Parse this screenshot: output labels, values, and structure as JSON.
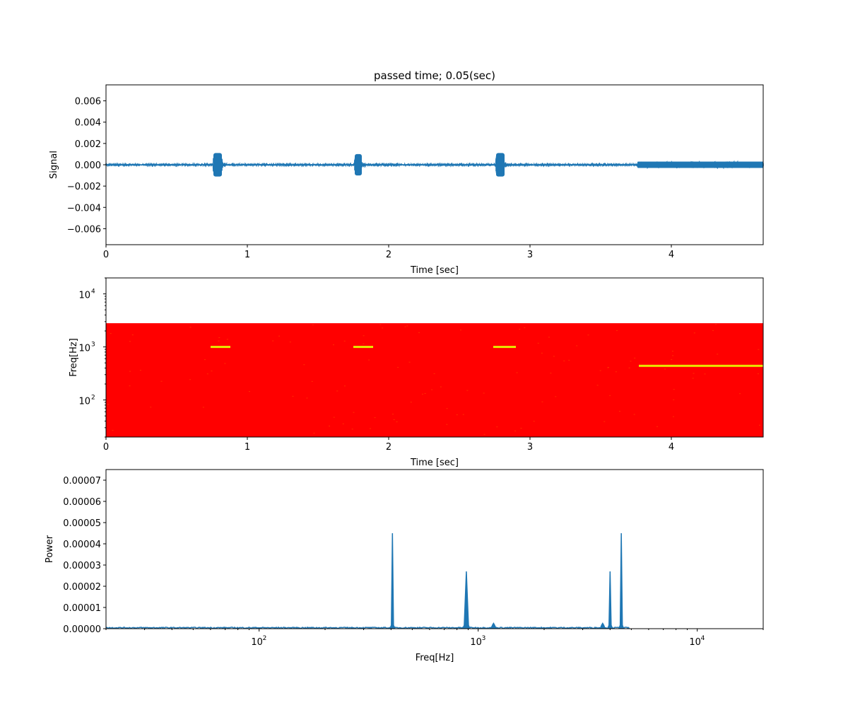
{
  "title": "passed time; 0.05(sec)",
  "colors": {
    "line": "#1f77b4",
    "spectrogram_background": "#ff0000",
    "spectrogram_highlight": "#e8e800"
  },
  "chart_data": [
    {
      "type": "line",
      "ylabel": "Signal",
      "xlabel": "Time [sec]",
      "xlim": [
        0,
        4.65
      ],
      "ylim": [
        -0.0075,
        0.0075
      ],
      "xticks": [
        "0",
        "1",
        "2",
        "3",
        "4"
      ],
      "xtick_values": [
        0,
        1,
        2,
        3,
        4
      ],
      "yticks": [
        "0.006",
        "0.004",
        "0.002",
        "0.000",
        "−0.002",
        "−0.004",
        "−0.006"
      ],
      "ytick_values": [
        0.006,
        0.004,
        0.002,
        0.0,
        -0.002,
        -0.004,
        -0.006
      ],
      "baseline_amplitude": 5e-05,
      "bursts": [
        {
          "start": 0.76,
          "end": 0.82,
          "amplitude": 0.0011
        },
        {
          "start": 1.76,
          "end": 1.81,
          "amplitude": 0.001
        },
        {
          "start": 2.76,
          "end": 2.82,
          "amplitude": 0.0011
        },
        {
          "start": 3.76,
          "end": 4.65,
          "amplitude": 0.0003
        }
      ]
    },
    {
      "type": "heatmap",
      "ylabel": "Freq[Hz]",
      "xlabel": "Time [sec]",
      "xlim": [
        0,
        4.65
      ],
      "ylim": [
        20,
        20000
      ],
      "yscale": "log",
      "xticks": [
        "0",
        "1",
        "2",
        "3",
        "4"
      ],
      "xtick_values": [
        0,
        1,
        2,
        3,
        4
      ],
      "yticks": [
        "10",
        "10",
        "10"
      ],
      "ytick_exponents": [
        "2",
        "3",
        "4"
      ],
      "ytick_values": [
        100,
        1000,
        10000
      ],
      "filled_freq_range": [
        20,
        2800
      ],
      "tones": [
        {
          "start": 0.74,
          "end": 0.88,
          "freq": 1000
        },
        {
          "start": 1.75,
          "end": 1.89,
          "freq": 1000
        },
        {
          "start": 2.74,
          "end": 2.9,
          "freq": 1000
        },
        {
          "start": 3.77,
          "end": 4.65,
          "freq": 440
        }
      ]
    },
    {
      "type": "line",
      "ylabel": "Power",
      "xlabel": "Freq[Hz]",
      "xscale": "log",
      "xlim": [
        20,
        20000
      ],
      "ylim": [
        0,
        7.5e-05
      ],
      "xticks": [
        "10",
        "10",
        "10"
      ],
      "xtick_exponents": [
        "2",
        "3",
        "4"
      ],
      "xtick_values": [
        100,
        1000,
        10000
      ],
      "yticks": [
        "0.00000",
        "0.00001",
        "0.00002",
        "0.00003",
        "0.00004",
        "0.00005",
        "0.00006",
        "0.00007"
      ],
      "ytick_values": [
        0,
        1e-05,
        2e-05,
        3e-05,
        4e-05,
        5e-05,
        6e-05,
        7e-05
      ],
      "noise_floor": 5e-07,
      "cutoff_freq": 4900,
      "peaks": [
        {
          "freq": 406,
          "power": 4.5e-05
        },
        {
          "freq": 883,
          "power": 2.7e-05
        },
        {
          "freq": 1175,
          "power": 2.5e-06
        },
        {
          "freq": 3700,
          "power": 2.5e-06
        },
        {
          "freq": 4000,
          "power": 2.7e-05
        },
        {
          "freq": 4500,
          "power": 4.5e-05
        }
      ]
    }
  ]
}
